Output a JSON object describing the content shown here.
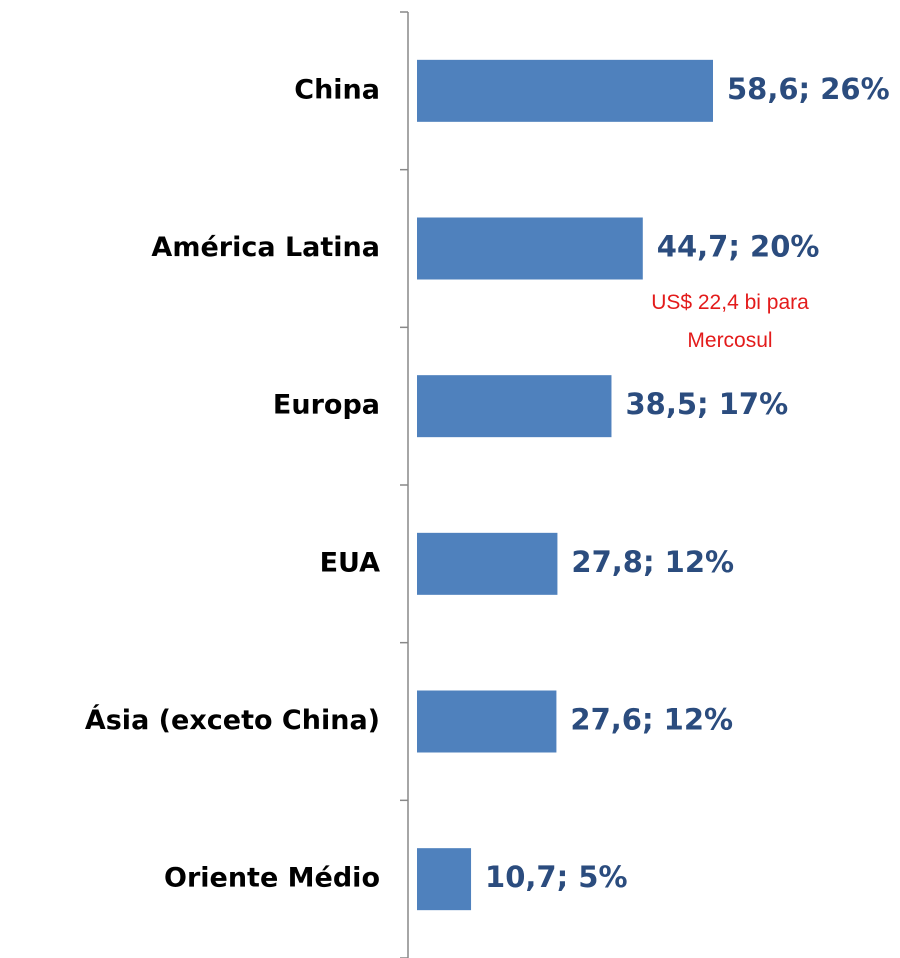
{
  "chart_data": {
    "type": "bar",
    "orientation": "horizontal",
    "categories": [
      "China",
      "América Latina",
      "Europa",
      "EUA",
      "Ásia (exceto China)",
      "Oriente Médio"
    ],
    "values": [
      58.6,
      44.7,
      38.5,
      27.8,
      27.6,
      10.7
    ],
    "value_labels": [
      "58,6; 26%",
      "44,7; 20%",
      "38,5; 17%",
      "27,8; 12%",
      "27,6; 12%",
      "10,7; 5%"
    ],
    "color": "#4f81bd",
    "annotation": "US$ 22,4 bi para Mercosul"
  }
}
